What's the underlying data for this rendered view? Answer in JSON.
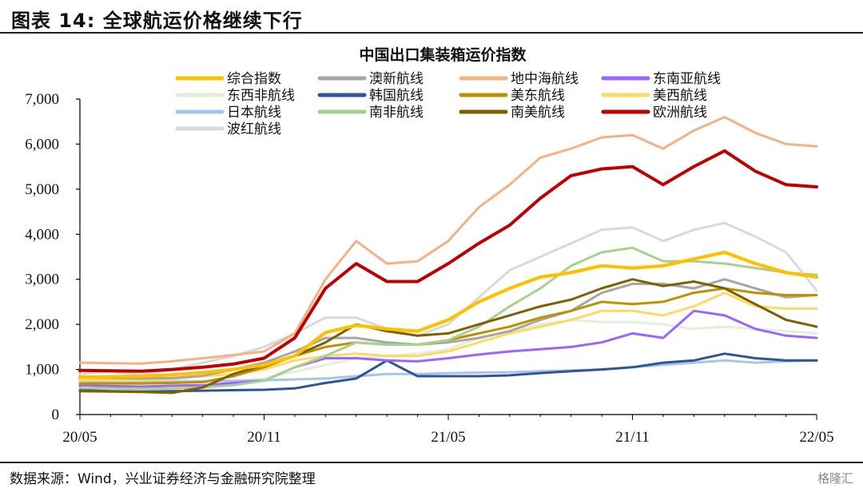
{
  "figure": {
    "title": "图表 14:  全球航运价格继续下行",
    "source": "数据来源：Wind，兴业证券经济与金融研究院整理",
    "watermark": "格隆汇"
  },
  "chart_data": {
    "type": "line",
    "title": "中国出口集装箱运价指数",
    "x_tick_labels": [
      "20/05",
      "20/11",
      "21/05",
      "21/11",
      "22/05"
    ],
    "y_tick_labels": [
      "0",
      "1,000",
      "2,000",
      "3,000",
      "4,000",
      "5,000",
      "6,000",
      "7,000"
    ],
    "ylim": [
      0,
      7000
    ],
    "legend_position": "top",
    "grid": false,
    "x": [
      "2020-05",
      "2020-06",
      "2020-07",
      "2020-08",
      "2020-09",
      "2020-10",
      "2020-11",
      "2020-12",
      "2021-01",
      "2021-02",
      "2021-03",
      "2021-04",
      "2021-05",
      "2021-06",
      "2021-07",
      "2021-08",
      "2021-09",
      "2021-10",
      "2021-11",
      "2021-12",
      "2022-01",
      "2022-02",
      "2022-03",
      "2022-04",
      "2022-05"
    ],
    "series": [
      {
        "name": "综合指数",
        "color": "#FFC000",
        "width": 4.2,
        "values": [
          830,
          840,
          850,
          880,
          930,
          1000,
          1100,
          1300,
          1820,
          1980,
          1900,
          1850,
          2100,
          2500,
          2800,
          3050,
          3150,
          3300,
          3250,
          3300,
          3450,
          3600,
          3350,
          3150,
          3050
        ]
      },
      {
        "name": "澳新航线",
        "color": "#A6A6A6",
        "width": 3,
        "values": [
          820,
          810,
          800,
          810,
          860,
          1000,
          1150,
          1400,
          1700,
          1700,
          1600,
          1550,
          1600,
          1700,
          1850,
          2100,
          2300,
          2700,
          2900,
          2900,
          2800,
          3000,
          2800,
          2600,
          2650
        ]
      },
      {
        "name": "地中海航线",
        "color": "#F4B183",
        "width": 3,
        "values": [
          1150,
          1140,
          1130,
          1180,
          1250,
          1320,
          1400,
          1800,
          3000,
          3850,
          3350,
          3400,
          3850,
          4600,
          5100,
          5700,
          5900,
          6150,
          6200,
          5900,
          6300,
          6600,
          6250,
          6000,
          5950
        ]
      },
      {
        "name": "东南亚航线",
        "color": "#9966FF",
        "width": 3,
        "values": [
          650,
          630,
          620,
          640,
          650,
          700,
          750,
          1050,
          1250,
          1250,
          1200,
          1180,
          1250,
          1330,
          1400,
          1450,
          1500,
          1600,
          1800,
          1700,
          2300,
          2200,
          1900,
          1750,
          1700
        ]
      },
      {
        "name": "东西非航线",
        "color": "#E2F0D9",
        "width": 3,
        "values": [
          690,
          690,
          690,
          700,
          720,
          740,
          800,
          950,
          1100,
          1250,
          1300,
          1350,
          1450,
          1700,
          1850,
          2000,
          2100,
          2050,
          2050,
          2000,
          1900,
          1950,
          1900,
          1850,
          1800
        ]
      },
      {
        "name": "韩国航线",
        "color": "#2F5597",
        "width": 3,
        "values": [
          540,
          520,
          510,
          520,
          530,
          540,
          550,
          580,
          700,
          800,
          1200,
          850,
          850,
          850,
          870,
          920,
          960,
          1000,
          1050,
          1150,
          1200,
          1350,
          1250,
          1200,
          1200
        ]
      },
      {
        "name": "美东航线",
        "color": "#BF9000",
        "width": 3,
        "values": [
          690,
          690,
          690,
          700,
          720,
          850,
          1050,
          1300,
          1500,
          1600,
          1550,
          1550,
          1650,
          1800,
          1950,
          2150,
          2300,
          2500,
          2450,
          2500,
          2700,
          2800,
          2700,
          2650,
          2650
        ]
      },
      {
        "name": "美西航线",
        "color": "#FFD966",
        "width": 3,
        "values": [
          760,
          760,
          760,
          780,
          850,
          900,
          1000,
          1200,
          1300,
          1350,
          1300,
          1300,
          1400,
          1600,
          1800,
          1950,
          2100,
          2300,
          2300,
          2200,
          2400,
          2700,
          2400,
          2350,
          2350
        ]
      },
      {
        "name": "日本航线",
        "color": "#A9C4EB",
        "width": 3,
        "values": [
          720,
          720,
          720,
          730,
          740,
          750,
          760,
          780,
          800,
          850,
          900,
          900,
          920,
          930,
          940,
          960,
          980,
          1000,
          1050,
          1100,
          1150,
          1200,
          1150,
          1180,
          1200
        ]
      },
      {
        "name": "南非航线",
        "color": "#A9D18E",
        "width": 3,
        "values": [
          590,
          580,
          570,
          580,
          600,
          650,
          750,
          1050,
          1300,
          1600,
          1550,
          1550,
          1650,
          1950,
          2400,
          2800,
          3300,
          3600,
          3700,
          3400,
          3400,
          3350,
          3250,
          3150,
          3100
        ]
      },
      {
        "name": "南美航线",
        "color": "#7F6000",
        "width": 3,
        "values": [
          520,
          510,
          500,
          480,
          600,
          900,
          1100,
          1300,
          1600,
          2000,
          1850,
          1750,
          1800,
          2000,
          2200,
          2400,
          2550,
          2800,
          3000,
          2850,
          2950,
          2800,
          2450,
          2100,
          1950
        ]
      },
      {
        "name": "欧洲航线",
        "color": "#C00000",
        "width": 4,
        "values": [
          980,
          970,
          960,
          1000,
          1050,
          1120,
          1250,
          1700,
          2800,
          3350,
          2950,
          2950,
          3350,
          3800,
          4200,
          4800,
          5300,
          5450,
          5500,
          5100,
          5500,
          5850,
          5400,
          5100,
          5050
        ]
      },
      {
        "name": "波红航线",
        "color": "#D9D9D9",
        "width": 3,
        "values": [
          900,
          950,
          880,
          1000,
          1150,
          1300,
          1500,
          1800,
          2150,
          2150,
          1900,
          1750,
          2000,
          2600,
          3200,
          3500,
          3800,
          4100,
          4150,
          3850,
          4100,
          4250,
          3950,
          3600,
          2750
        ]
      }
    ]
  }
}
